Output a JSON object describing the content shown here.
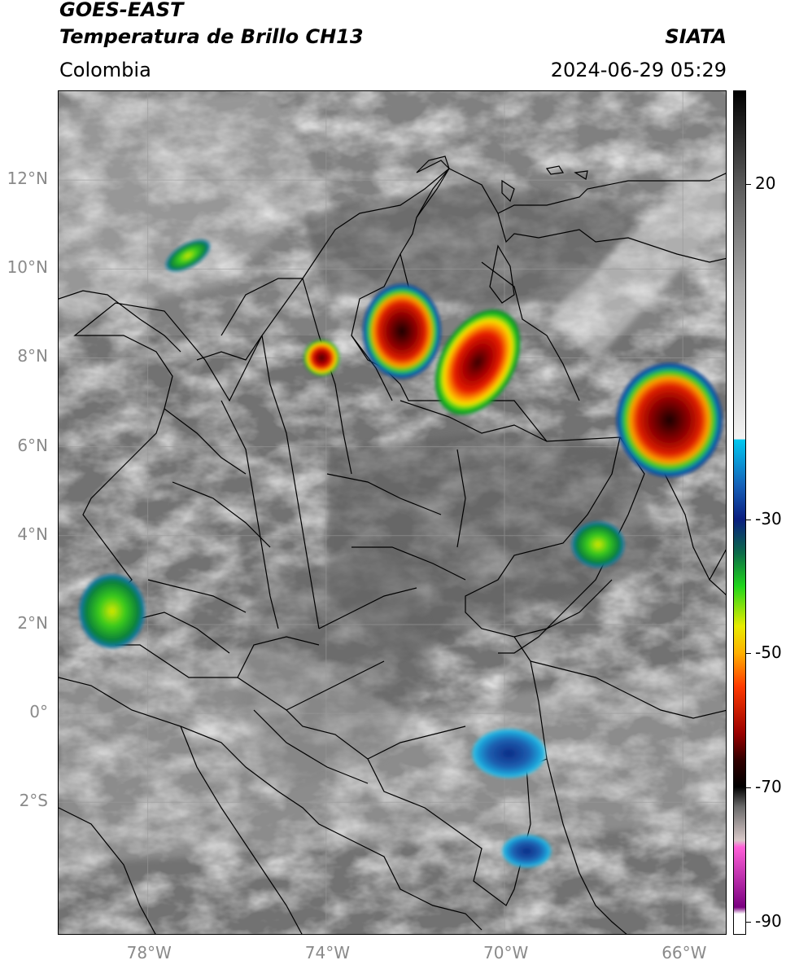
{
  "header": {
    "satellite": "GOES-EAST",
    "product": "Temperatura de Brillo CH13",
    "region": "Colombia",
    "agency": "SIATA",
    "datetime": "2024-06-29 05:29"
  },
  "map": {
    "lon_range": [
      -80,
      -65
    ],
    "lat_range": [
      -5,
      14
    ],
    "longitude_ticks": [
      "78°W",
      "74°W",
      "70°W",
      "66°W"
    ],
    "latitude_ticks": [
      "12°N",
      "10°N",
      "8°N",
      "6°N",
      "4°N",
      "2°N",
      "0°",
      "2°S"
    ],
    "gridlines": true,
    "colors": {
      "background_gray": "#777777",
      "border_lines": "#000000",
      "gridline": "#9a9a9a"
    }
  },
  "colorbar": {
    "tick_labels": [
      "20",
      "-30",
      "-50",
      "-70",
      "-90"
    ],
    "tick_values": [
      20,
      -30,
      -50,
      -70,
      -90
    ],
    "range": [
      -92,
      34
    ],
    "units_shown": false
  },
  "cold_cloud_areas": [
    {
      "name": "Catatumbo storm",
      "lon": -72.3,
      "lat": 8.6,
      "min_class": "red"
    },
    {
      "name": "Venezuela Llanos storm",
      "lon": -70.6,
      "lat": 7.9,
      "min_class": "dark red"
    },
    {
      "name": "Eastern Venezuela storm",
      "lon": -66.3,
      "lat": 6.6,
      "min_class": "black-red"
    },
    {
      "name": "Middle Magdalena storm",
      "lon": -74.1,
      "lat": 8.0,
      "min_class": "red"
    },
    {
      "name": "Pacific coast cluster",
      "lon": -78.8,
      "lat": 2.3,
      "min_class": "green"
    },
    {
      "name": "Guainia cluster",
      "lon": -67.9,
      "lat": 3.8,
      "min_class": "green"
    },
    {
      "name": "Amazon cluster",
      "lon": -69.9,
      "lat": -0.9,
      "min_class": "blue"
    },
    {
      "name": "Southern Amazon cluster",
      "lon": -69.5,
      "lat": -3.1,
      "min_class": "blue"
    },
    {
      "name": "Caribbean cluster",
      "lon": -77.1,
      "lat": 10.3,
      "min_class": "green"
    }
  ]
}
